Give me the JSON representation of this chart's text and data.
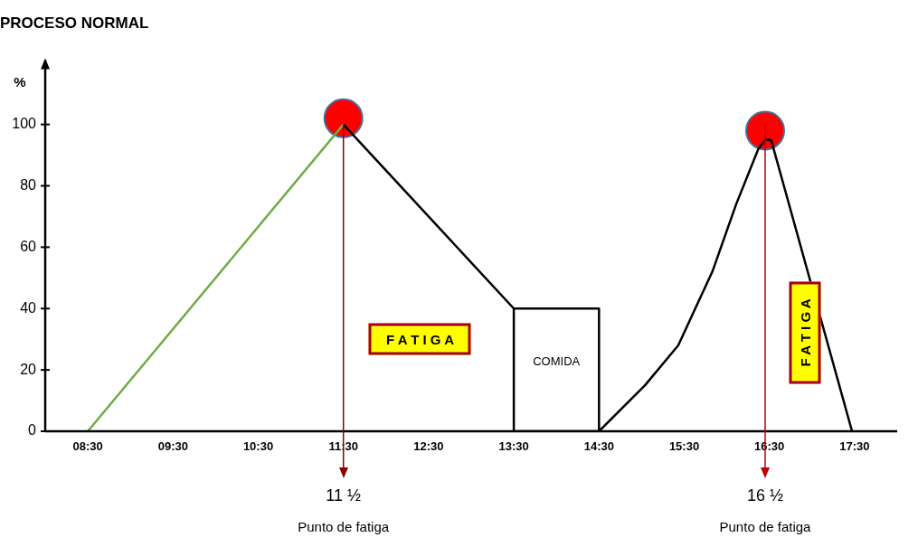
{
  "chart_data": {
    "type": "line",
    "title": "PROCESO NORMAL",
    "ylabel": "%",
    "xlim": [
      8,
      18
    ],
    "xticks": [
      {
        "value": 8.5,
        "label": "08:30"
      },
      {
        "value": 9.5,
        "label": "09:30"
      },
      {
        "value": 10.5,
        "label": "10:30"
      },
      {
        "value": 11.5,
        "label": "11:30"
      },
      {
        "value": 12.5,
        "label": "12:30"
      },
      {
        "value": 13.5,
        "label": "13:30"
      },
      {
        "value": 14.5,
        "label": "14:30"
      },
      {
        "value": 15.5,
        "label": "15:30"
      },
      {
        "value": 16.5,
        "label": "16:30"
      },
      {
        "value": 17.5,
        "label": "17:30"
      }
    ],
    "ylim": [
      0,
      121
    ],
    "yticks": [
      0,
      20,
      40,
      60,
      80,
      100
    ],
    "grid": false,
    "legend": false,
    "marker": "none",
    "line_style": "solid",
    "series": [
      {
        "color": "#70ad47",
        "x": [
          8.5,
          11.5
        ],
        "values": [
          0,
          100
        ]
      },
      {
        "color": "#000000",
        "x": [
          11.5,
          13.5,
          13.5,
          14.5,
          14.5,
          13.5
        ],
        "values": [
          100,
          40,
          0,
          0,
          40,
          40
        ]
      },
      {
        "color": "#000000",
        "x": [
          14.5,
          15.04,
          15.43,
          15.83,
          16.11,
          16.37,
          16.45,
          16.52,
          17.47
        ],
        "values": [
          0,
          15,
          28,
          52,
          74,
          92,
          95,
          95,
          0
        ]
      },
      {
        "type": "scatter",
        "marker": "circle",
        "color": "#ff0000",
        "x": [
          11.5,
          16.45
        ],
        "values": [
          102,
          98
        ]
      }
    ],
    "ref_lines": [
      {
        "axis": "x",
        "value": 11.5,
        "label": "11 ½",
        "color": "#8b0000"
      },
      {
        "axis": "x",
        "value": 16.45,
        "label": "16 ½",
        "color": "#c00000"
      }
    ],
    "annotations": [
      "F A T I G A",
      "F A T I G A",
      "COMIDA",
      "Punto de fatiga",
      "Punto de fatiga"
    ]
  }
}
